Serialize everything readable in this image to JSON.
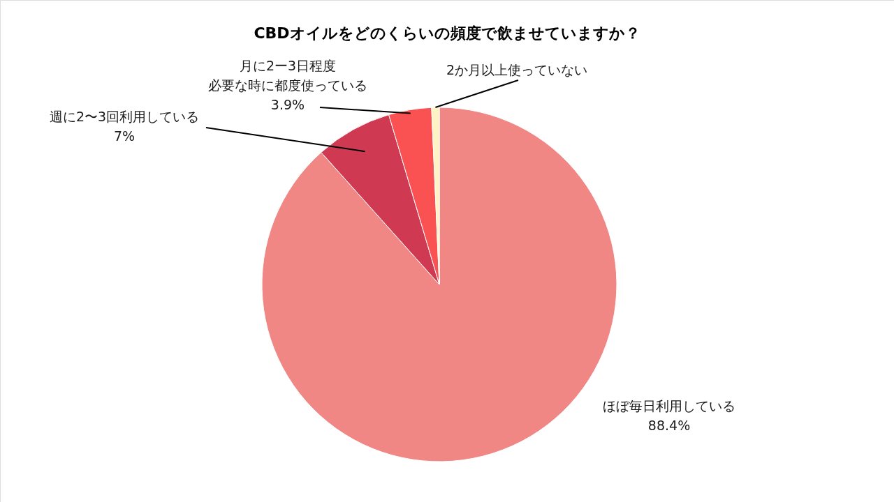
{
  "chart_data": {
    "type": "pie",
    "title": "CBDオイルをどのくらいの頻度で飲ませていますか？",
    "categories": [
      "ほぼ毎日利用している",
      "週に2〜3回利用している",
      "月に2ー3日程度必要な時に都度使っている",
      "2か月以上使っていない"
    ],
    "values": [
      88.4,
      7,
      3.9,
      0.7
    ],
    "colors": [
      "#f08784",
      "#cf3a52",
      "#fa5252",
      "#fff3c4"
    ],
    "value_labels": [
      "88.4%",
      "7%",
      "3.9%",
      null
    ],
    "legend": false
  }
}
